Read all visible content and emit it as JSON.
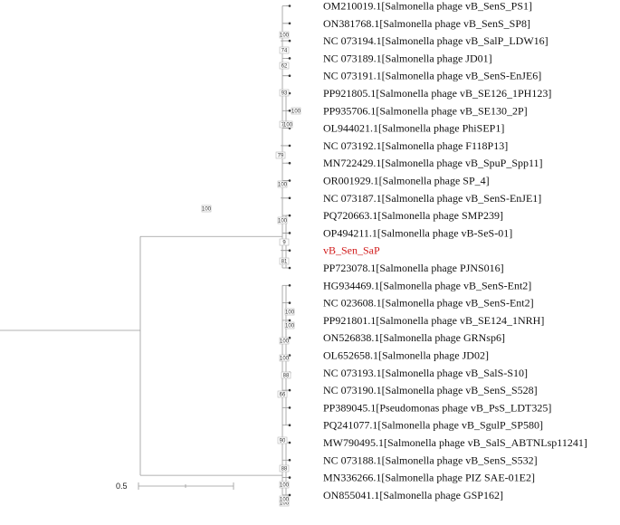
{
  "tree": {
    "leaves": [
      {
        "label": "OM210019.1[Salmonella phage vB_SenS_PS1]"
      },
      {
        "label": "ON381768.1[Salmonella phage vB_SenS_SP8]"
      },
      {
        "label": "NC 073194.1[Salmonella phage vB_SalP_LDW16]"
      },
      {
        "label": "NC 073189.1[Salmonella phage JD01]"
      },
      {
        "label": "NC 073191.1[Salmonella phage vB_SenS-EnJE6]"
      },
      {
        "label": "PP921805.1[Salmonella phage vB_SE126_1PH123]"
      },
      {
        "label": "PP935706.1[Salmonella phage vB_SE130_2P]"
      },
      {
        "label": "OL944021.1[Salmonella phage PhiSEP1]"
      },
      {
        "label": "NC 073192.1[Salmonella phage F118P13]"
      },
      {
        "label": "MN722429.1[Salmonella phage vB_SpuP_Spp11]"
      },
      {
        "label": "OR001929.1[Salmonella phage SP_4]"
      },
      {
        "label": "NC 073187.1[Salmonella phage vB_SenS-EnJE1]"
      },
      {
        "label": "PQ720663.1[Salmonella phage SMP239]"
      },
      {
        "label": "OP494211.1[Salmonella phage vB-SeS-01]"
      },
      {
        "label": "vB_Sen_SaP",
        "highlight": true
      },
      {
        "label": "PP723078.1[Salmonella phage PJNS016]"
      },
      {
        "label": "HG934469.1[Salmonella phage vB_SenS-Ent2]"
      },
      {
        "label": "NC 023608.1[Salmonella phage vB_SenS-Ent2]"
      },
      {
        "label": "PP921801.1[Salmonella phage vB_SE124_1NRH]"
      },
      {
        "label": "ON526838.1[Salmonella phage GRNsp6]"
      },
      {
        "label": "OL652658.1[Salmonella phage JD02]"
      },
      {
        "label": "NC 073193.1[Salmonella phage vB_SalS-S10]"
      },
      {
        "label": "NC 073190.1[Salmonella phage vB_SenS_S528]"
      },
      {
        "label": "PP389045.1[Pseudomonas phage vB_PsS_LDT325]"
      },
      {
        "label": "PQ241077.1[Salmonella phage vB_SgulP_SP580]"
      },
      {
        "label": "MW790495.1[Salmonella phage vB_SalS_ABTNLsp11241]"
      },
      {
        "label": "NC 073188.1[Salmonella phage vB_SenS_S532]"
      },
      {
        "label": "MN336266.1[Salmonella phage PIZ SAE-01E2]"
      },
      {
        "label": "ON855041.1[Salmonella phage GSP162]"
      }
    ],
    "bootstrap": [
      "100",
      "74",
      "62",
      "93",
      "100",
      "71",
      "100",
      "79",
      "100",
      "100",
      "9",
      "81",
      "100",
      "100",
      "100",
      "100",
      "100",
      "88",
      "66",
      "90",
      "88",
      "100",
      "100",
      "100"
    ],
    "highlight_color": "#d11a1a"
  },
  "scale_bar": {
    "label": "0.5"
  }
}
